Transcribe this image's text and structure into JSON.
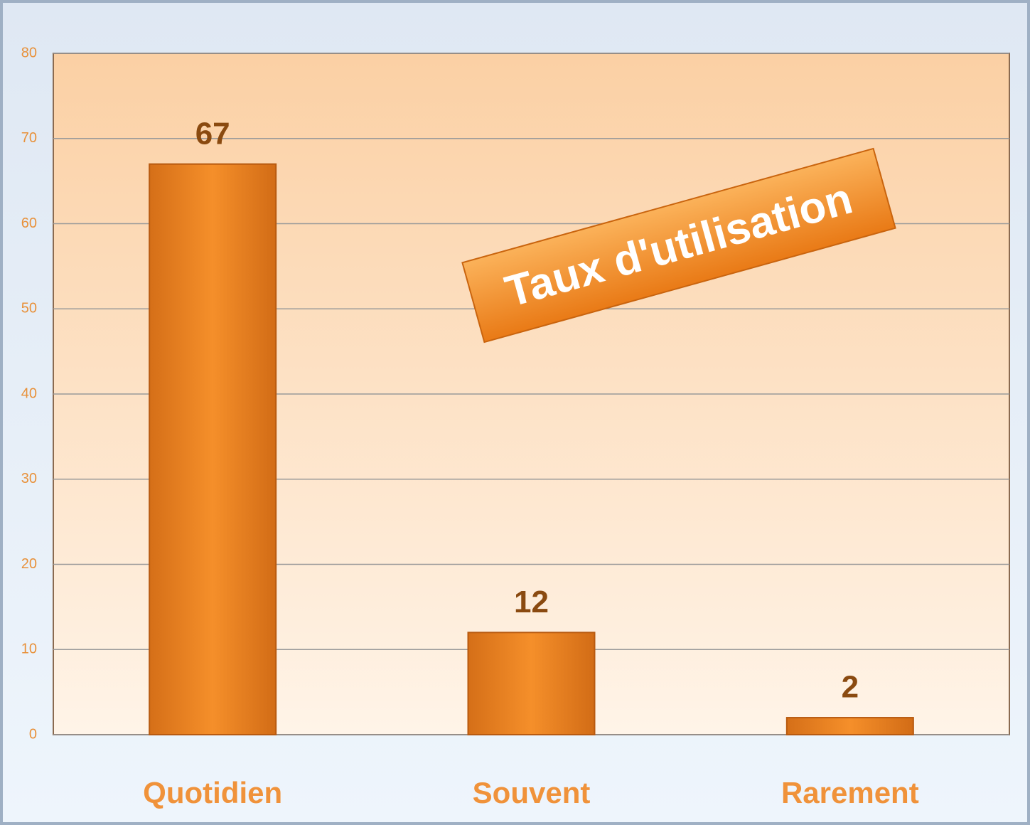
{
  "chart_data": {
    "type": "bar",
    "title": "Taux d'utilisation",
    "categories": [
      "Quotidien",
      "Souvent",
      "Rarement"
    ],
    "values": [
      67,
      12,
      2
    ],
    "color": "#f08a24",
    "ylim": [
      0,
      80
    ],
    "yticks": [
      0,
      10,
      20,
      30,
      40,
      50,
      60,
      70,
      80
    ],
    "grid": true
  }
}
